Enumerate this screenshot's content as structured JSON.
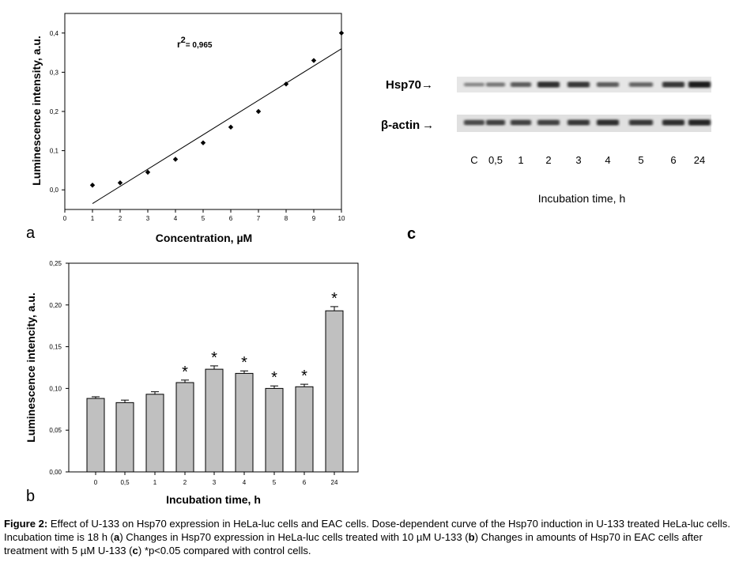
{
  "panels": {
    "a": {
      "letter": "a"
    },
    "b": {
      "letter": "b"
    },
    "c": {
      "letter": "c"
    }
  },
  "chart_data": [
    {
      "panel": "a",
      "type": "scatter",
      "xlabel": "Concentration, µM",
      "ylabel": "Luminescence intensity, a.u.",
      "xlim": [
        0,
        10
      ],
      "ylim": [
        -0.05,
        0.45
      ],
      "x_ticks": [
        "0",
        "1",
        "2",
        "3",
        "4",
        "5",
        "6",
        "7",
        "8",
        "9",
        "10"
      ],
      "y_ticks": [
        "0,0",
        "0,1",
        "0,2",
        "0,3",
        "0,4"
      ],
      "x": [
        1,
        2,
        3,
        4,
        5,
        6,
        7,
        8,
        9,
        10
      ],
      "y": [
        0.012,
        0.018,
        0.045,
        0.078,
        0.12,
        0.16,
        0.2,
        0.27,
        0.33,
        0.4
      ],
      "fit_line": {
        "x": [
          1,
          10
        ],
        "y": [
          -0.035,
          0.36
        ]
      },
      "annotation": {
        "r2_prefix": "r",
        "r2_sup": "2",
        "r2_value": "= 0,965"
      },
      "grid": false,
      "marker_color": "#000000"
    },
    {
      "panel": "b",
      "type": "bar",
      "xlabel": "Incubation time, h",
      "ylabel": "Luminescence intencity, a.u.",
      "ylim": [
        0,
        0.25
      ],
      "y_ticks": [
        "0,00",
        "0,05",
        "0,10",
        "0,15",
        "0,20",
        "0,25"
      ],
      "categories": [
        "0",
        "0,5",
        "1",
        "2",
        "3",
        "4",
        "5",
        "6",
        "24"
      ],
      "values": [
        0.088,
        0.083,
        0.093,
        0.107,
        0.123,
        0.118,
        0.1,
        0.102,
        0.193
      ],
      "errors": [
        0.002,
        0.003,
        0.003,
        0.003,
        0.004,
        0.003,
        0.003,
        0.003,
        0.005
      ],
      "significance": [
        "",
        "",
        "",
        "*",
        "*",
        "*",
        "*",
        "*",
        "*"
      ],
      "bar_color": "#c0c0c0",
      "grid": false
    }
  ],
  "blot": {
    "rows": [
      {
        "label": "Hsp70",
        "arrow": "→",
        "intensity": [
          0.35,
          0.45,
          0.6,
          0.85,
          0.8,
          0.6,
          0.55,
          0.8,
          0.95
        ]
      },
      {
        "label": "β-actin",
        "arrow": "→",
        "intensity": [
          0.7,
          0.75,
          0.75,
          0.75,
          0.8,
          0.85,
          0.8,
          0.85,
          0.9
        ]
      }
    ],
    "lanes": [
      "C",
      "0,5",
      "1",
      "2",
      "3",
      "4",
      "5",
      "6",
      "24"
    ],
    "xlabel": "Incubation time, h"
  },
  "caption": {
    "label": "Figure 2:",
    "text_1": " Effect of U-133 on Hsp70 expression in HeLa-luc cells and EAC cells. Dose-dependent curve of the Hsp70 induction in U-133 treated HeLa-luc cells. Incubation time is 18 h (",
    "ref_a": "a",
    "text_2": ") Changes in Hsp70 expression in HeLa-luc cells treated with 10 µM U-133 (",
    "ref_b": "b",
    "text_3": ") Changes in amounts of Hsp70 in EAC cells after treatment with 5 µM U-133 (",
    "ref_c": "c",
    "text_4": ") *p<0.05 compared with control cells."
  }
}
